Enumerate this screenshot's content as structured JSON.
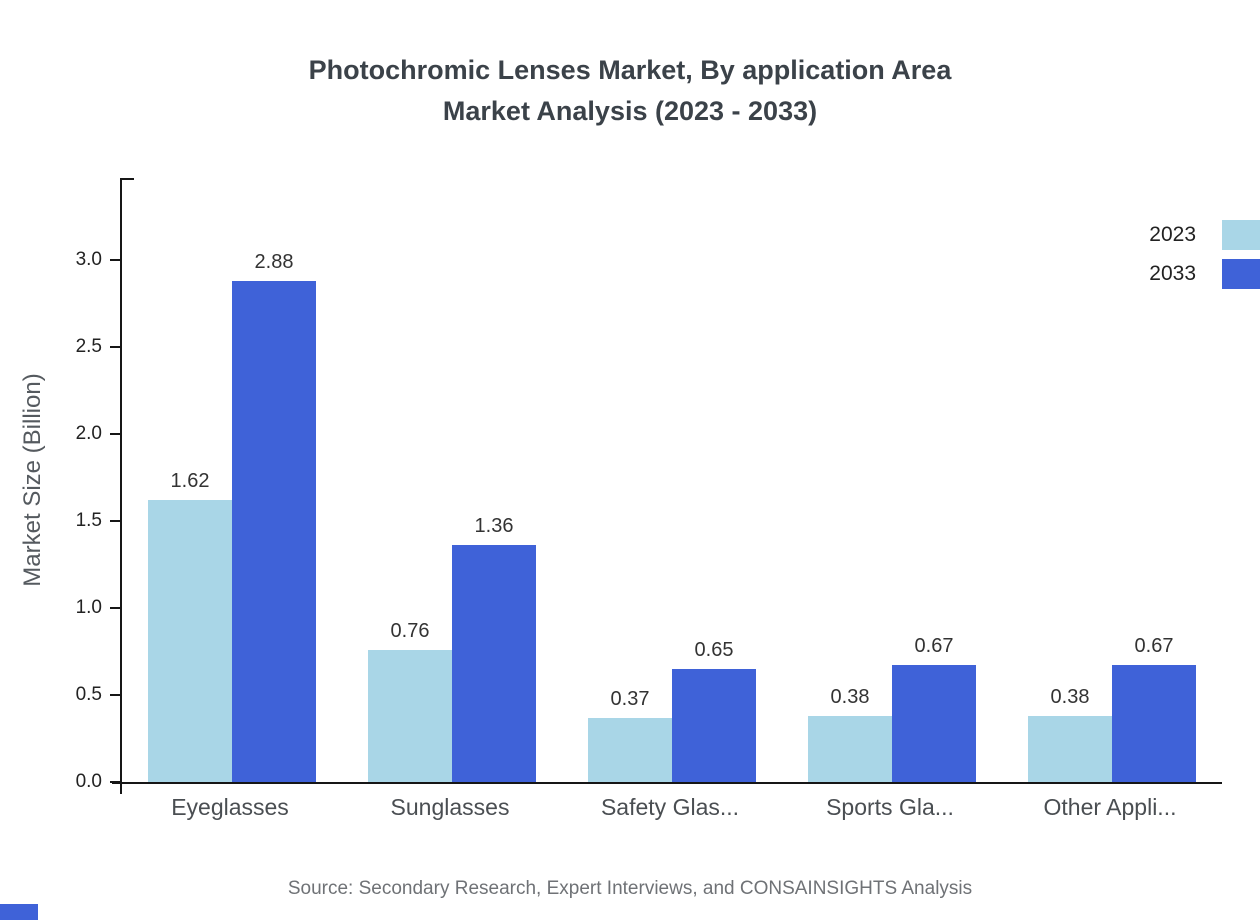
{
  "chart_data": {
    "type": "bar",
    "title": "Photochromic Lenses Market, By application Area Market Analysis (2023 - 2033)",
    "title_lines": [
      "Photochromic Lenses Market, By application Area",
      "Market Analysis (2023 - 2033)"
    ],
    "categories": [
      "Eyeglasses",
      "Sunglasses",
      "Safety Glas...",
      "Sports Gla...",
      "Other Appli..."
    ],
    "series": [
      {
        "name": "2023",
        "color": "#a9d6e7",
        "values": [
          1.62,
          0.76,
          0.37,
          0.38,
          0.38
        ]
      },
      {
        "name": "2033",
        "color": "#3f62d8",
        "values": [
          2.88,
          1.36,
          0.65,
          0.67,
          0.67
        ]
      }
    ],
    "xlabel": "",
    "ylabel": "Market Size (Billion)",
    "ylim": [
      0,
      3.47
    ],
    "ytick_labels": [
      "0.0",
      "0.5",
      "1.0",
      "1.5",
      "2.0",
      "2.5",
      "3.0"
    ],
    "grid": false,
    "legend_position": "top-right",
    "value_labels_shown": true
  },
  "footer": {
    "source": "Source: Secondary Research, Expert Interviews, and CONSAINSIGHTS Analysis"
  },
  "colors": {
    "series_2023": "#a9d6e7",
    "series_2033": "#3f62d8",
    "axis": "#161616",
    "title_text": "#3b4249",
    "corner_mark": "#3f62d8"
  }
}
